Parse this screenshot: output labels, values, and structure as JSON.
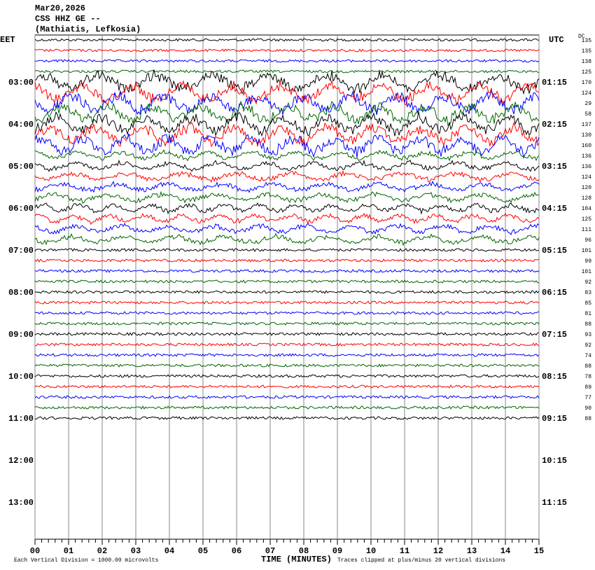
{
  "chart_data": {
    "type": "helicorder",
    "title_lines": [
      "Mar20,2026",
      "CSS HHZ GE --",
      "(Mathiatis, Lefkosia)"
    ],
    "left_zone": "EET",
    "right_zone": "UTC",
    "dc_header": "DC",
    "hour_labels_left": [
      "03:00",
      "04:00",
      "05:00",
      "06:00",
      "07:00",
      "08:00",
      "09:00",
      "10:00",
      "11:00",
      "12:00",
      "13:00"
    ],
    "hour_labels_right": [
      "01:15",
      "02:15",
      "03:15",
      "04:15",
      "05:15",
      "06:15",
      "07:15",
      "08:15",
      "09:15",
      "10:15",
      "11:15"
    ],
    "dc_values": [
      135,
      135,
      138,
      125,
      170,
      124,
      29,
      58,
      137,
      130,
      160,
      136,
      136,
      124,
      120,
      128,
      104,
      125,
      111,
      96,
      101,
      99,
      101,
      92,
      83,
      85,
      81,
      88,
      93,
      92,
      74,
      88,
      78,
      89,
      77,
      90,
      88
    ],
    "colors": [
      "#000000",
      "#ff0000",
      "#0000ff",
      "#006400"
    ],
    "xlim": [
      0,
      15
    ],
    "xticks": [
      {
        "value": 0,
        "label": "00"
      },
      {
        "value": 1,
        "label": "01"
      },
      {
        "value": 2,
        "label": "02"
      },
      {
        "value": 3,
        "label": "03"
      },
      {
        "value": 4,
        "label": "04"
      },
      {
        "value": 5,
        "label": "05"
      },
      {
        "value": 6,
        "label": "06"
      },
      {
        "value": 7,
        "label": "07"
      },
      {
        "value": 8,
        "label": "08"
      },
      {
        "value": 9,
        "label": "09"
      },
      10,
      11,
      12,
      13,
      14,
      15
    ],
    "xlabel": "TIME (MINUTES)",
    "scale_note": "Each Vertical Division = 1000.00 microvolts",
    "clip_note": "Traces clipped at plus/minus 20 vertical divisions"
  }
}
